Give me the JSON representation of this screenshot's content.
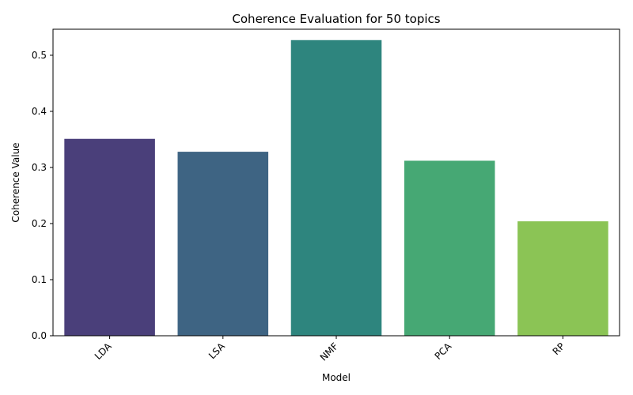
{
  "chart_data": {
    "type": "bar",
    "title": "Coherence Evaluation for 50 topics",
    "xlabel": "Model",
    "ylabel": "Coherence Value",
    "categories": [
      "LDA",
      "LSA",
      "NMF",
      "PCA",
      "RP"
    ],
    "values": [
      0.351,
      0.328,
      0.527,
      0.312,
      0.204
    ],
    "colors": [
      "#4a3f7a",
      "#3e6483",
      "#2e857e",
      "#46a874",
      "#8bc455"
    ],
    "ylim": [
      0,
      0.5464
    ],
    "yticks": [
      0.0,
      0.1,
      0.2,
      0.3,
      0.4,
      0.5
    ],
    "ytick_labels": [
      "0.0",
      "0.1",
      "0.2",
      "0.3",
      "0.4",
      "0.5"
    ],
    "grid": false,
    "legend": false
  }
}
